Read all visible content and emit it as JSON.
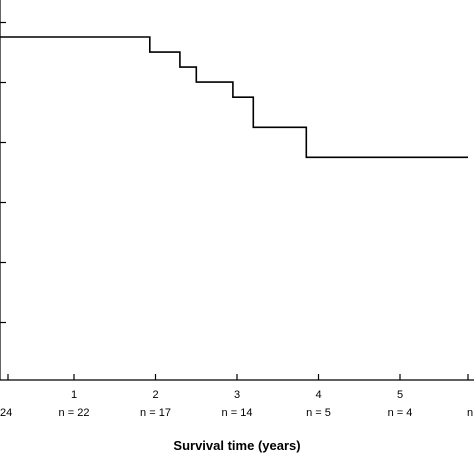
{
  "chart_data": {
    "type": "line",
    "subtype": "kaplan-meier step curve",
    "title": "",
    "xlabel": "Survival time (years)",
    "ylabel": "",
    "xlim": [
      -0.45,
      5.85
    ],
    "ylim": [
      0,
      1
    ],
    "x_ticks": [
      {
        "value": 1,
        "label": "1"
      },
      {
        "value": 2,
        "label": "2"
      },
      {
        "value": 3,
        "label": "3"
      },
      {
        "value": 4,
        "label": "4"
      },
      {
        "value": 5,
        "label": "5"
      }
    ],
    "y_tick_count": 6,
    "at_risk": [
      {
        "x": 0,
        "label": "24"
      },
      {
        "x": 1,
        "label": "n = 22"
      },
      {
        "x": 2,
        "label": "n = 17"
      },
      {
        "x": 3,
        "label": "n = 14"
      },
      {
        "x": 4,
        "label": "n = 5"
      },
      {
        "x": 5,
        "label": "n = 4"
      },
      {
        "x": 6,
        "label": "n"
      }
    ],
    "series": [
      {
        "points": [
          [
            -0.5,
            1.0
          ],
          [
            -0.05,
            1.0
          ],
          [
            -0.05,
            0.958
          ],
          [
            1.93,
            0.958
          ],
          [
            1.93,
            0.916
          ],
          [
            2.3,
            0.916
          ],
          [
            2.3,
            0.874
          ],
          [
            2.5,
            0.874
          ],
          [
            2.5,
            0.832
          ],
          [
            2.95,
            0.832
          ],
          [
            2.95,
            0.79
          ],
          [
            3.2,
            0.79
          ],
          [
            3.2,
            0.706
          ],
          [
            3.85,
            0.706
          ],
          [
            3.85,
            0.622
          ],
          [
            5.85,
            0.622
          ]
        ]
      }
    ],
    "grid": false,
    "legend": "none"
  }
}
